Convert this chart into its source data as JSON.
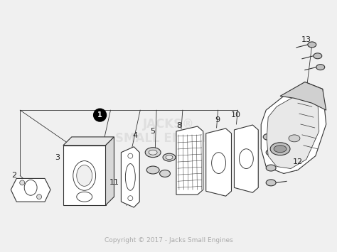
{
  "background_color": "#f0f0f0",
  "copyright_text": "Copyright © 2017 - Jacks Small Engines",
  "copyright_color": "#aaaaaa",
  "copyright_fontsize": 6.5,
  "diagram_line_color": "#333333",
  "label_fontsize": 7,
  "watermark_color": "#cccccc",
  "watermark_alpha": 0.45
}
